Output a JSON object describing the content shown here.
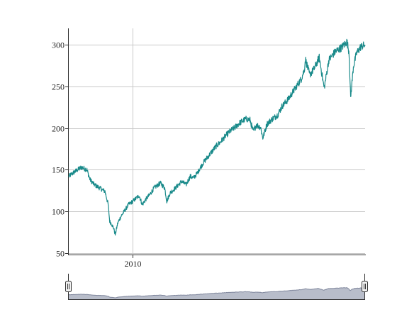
{
  "chart_data": {
    "type": "line",
    "title": "",
    "xlabel": "",
    "ylabel": "",
    "ylim": [
      48,
      320
    ],
    "yticks": [
      50,
      100,
      150,
      200,
      250,
      300
    ],
    "xlim": [
      2007.0,
      2020.9
    ],
    "xticks": [
      {
        "value": 2010,
        "label": "2010"
      }
    ],
    "grid": {
      "horizontal": true,
      "vertical": true
    },
    "legend": "none",
    "colors": {
      "line": "#198a8a",
      "axis": "#333333",
      "grid": "#c8c8c8",
      "navigator_fill": "#b8bdca",
      "navigator_line": "#7f869c"
    },
    "series": [
      {
        "x": [
          2007.0,
          2007.3,
          2007.6,
          2007.85,
          2008.0,
          2008.2,
          2008.45,
          2008.7,
          2008.85,
          2008.92,
          2009.0,
          2009.1,
          2009.18,
          2009.3,
          2009.45,
          2009.6,
          2009.8,
          2010.0,
          2010.3,
          2010.45,
          2010.6,
          2010.8,
          2011.0,
          2011.3,
          2011.5,
          2011.6,
          2011.75,
          2012.0,
          2012.3,
          2012.5,
          2012.7,
          2012.85,
          2013.0,
          2013.3,
          2013.6,
          2013.9,
          2014.1,
          2014.4,
          2014.6,
          2014.8,
          2015.0,
          2015.3,
          2015.5,
          2015.65,
          2015.8,
          2016.0,
          2016.1,
          2016.3,
          2016.5,
          2016.8,
          2017.0,
          2017.3,
          2017.6,
          2017.9,
          2018.05,
          2018.1,
          2018.3,
          2018.5,
          2018.75,
          2018.98,
          2019.2,
          2019.5,
          2019.8,
          2020.05,
          2020.15,
          2020.22,
          2020.35,
          2020.5,
          2020.7,
          2020.9
        ],
        "values": [
          142,
          148,
          153,
          150,
          138,
          132,
          128,
          124,
          108,
          88,
          85,
          80,
          72,
          86,
          94,
          100,
          108,
          112,
          119,
          108,
          114,
          120,
          128,
          134,
          128,
          112,
          122,
          128,
          136,
          132,
          142,
          140,
          145,
          158,
          168,
          178,
          183,
          192,
          197,
          201,
          206,
          211,
          210,
          196,
          204,
          201,
          188,
          205,
          210,
          216,
          226,
          235,
          247,
          259,
          270,
          283,
          264,
          271,
          285,
          248,
          282,
          292,
          297,
          304,
          291,
          236,
          274,
          290,
          298,
          300
        ]
      }
    ]
  },
  "navigator": {
    "handle_left": "left-handle-grip-icon",
    "handle_right": "right-handle-grip-icon"
  }
}
